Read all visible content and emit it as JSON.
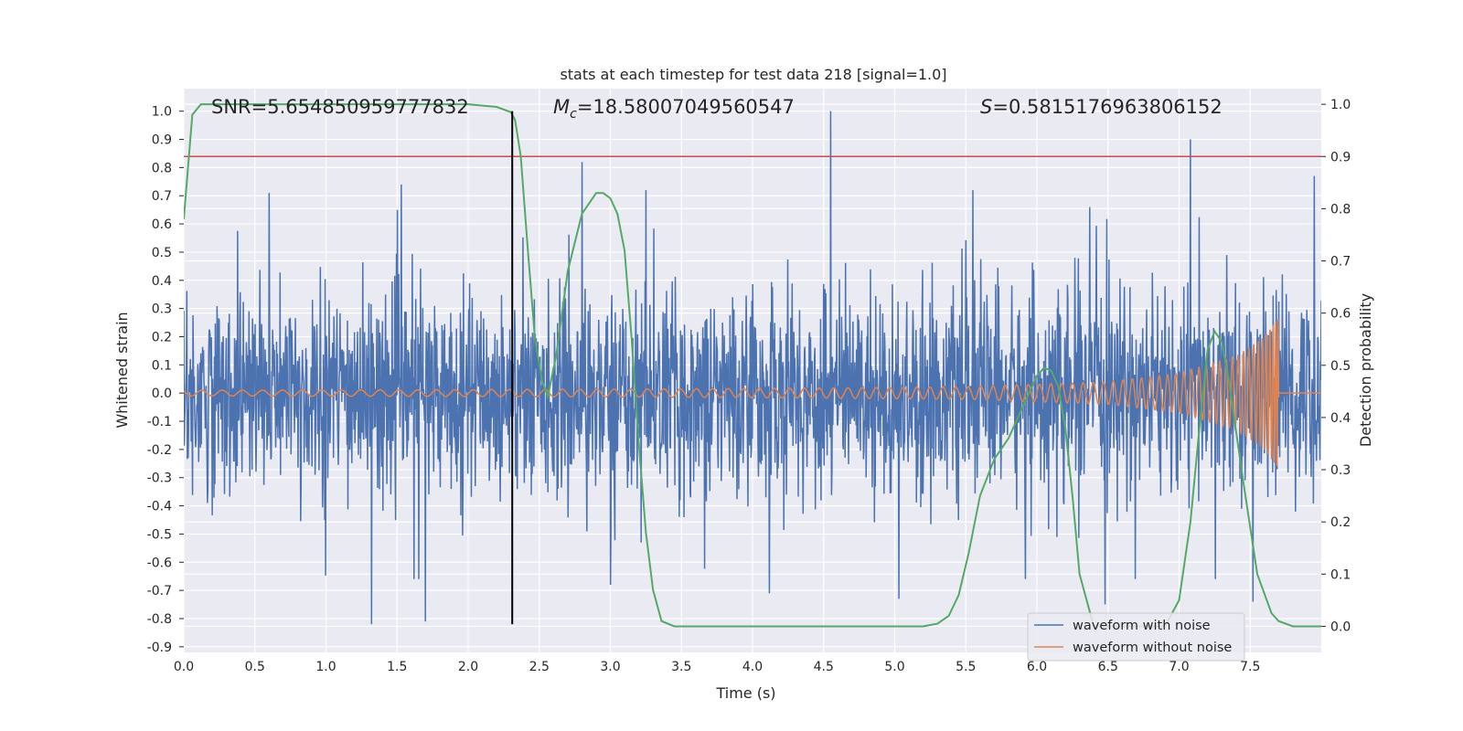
{
  "chart_data": {
    "type": "line",
    "title": "stats at each timestep for test data 218 [signal=1.0]",
    "xlabel": "Time (s)",
    "ylabel": "Whitened strain",
    "y2label": "Detection probability",
    "xlim": [
      0.0,
      8.0
    ],
    "ylim": [
      -0.92,
      1.08
    ],
    "y2lim": [
      -0.05,
      1.03
    ],
    "xticks": [
      "0.0",
      "0.5",
      "1.0",
      "1.5",
      "2.0",
      "2.5",
      "3.0",
      "3.5",
      "4.0",
      "4.5",
      "5.0",
      "5.5",
      "6.0",
      "6.5",
      "7.0",
      "7.5"
    ],
    "xtick_values": [
      0.0,
      0.5,
      1.0,
      1.5,
      2.0,
      2.5,
      3.0,
      3.5,
      4.0,
      4.5,
      5.0,
      5.5,
      6.0,
      6.5,
      7.0,
      7.5
    ],
    "yticks": [
      "-0.9",
      "-0.8",
      "-0.7",
      "-0.6",
      "-0.5",
      "-0.4",
      "-0.3",
      "-0.2",
      "-0.1",
      "0.0",
      "0.1",
      "0.2",
      "0.3",
      "0.4",
      "0.5",
      "0.6",
      "0.7",
      "0.8",
      "0.9",
      "1.0"
    ],
    "ytick_values": [
      -0.9,
      -0.8,
      -0.7,
      -0.6,
      -0.5,
      -0.4,
      -0.3,
      -0.2,
      -0.1,
      0.0,
      0.1,
      0.2,
      0.3,
      0.4,
      0.5,
      0.6,
      0.7,
      0.8,
      0.9,
      1.0
    ],
    "y2ticks": [
      "0.0",
      "0.1",
      "0.2",
      "0.3",
      "0.4",
      "0.5",
      "0.6",
      "0.7",
      "0.8",
      "0.9",
      "1.0"
    ],
    "y2tick_values": [
      0.0,
      0.1,
      0.2,
      0.3,
      0.4,
      0.5,
      0.6,
      0.7,
      0.8,
      0.9,
      1.0
    ],
    "annotations": {
      "snr": "SNR=5.654850959777832",
      "mc_symbol": "M",
      "mc_sub": "c",
      "mc_value": "=18.58007049560547",
      "s_symbol": "S",
      "s_value": "=0.5815176963806152"
    },
    "threshold": {
      "value": 0.9,
      "axis": "y2",
      "color": "#c44e52"
    },
    "marker": {
      "x": 2.31,
      "ymin": -0.82,
      "ymax": 1.0,
      "color": "#000000"
    },
    "legend": {
      "placement": "lower-right",
      "entries": [
        {
          "label": "waveform with noise",
          "color": "#4c72b0"
        },
        {
          "label": "waveform without noise",
          "color": "#dd8452"
        }
      ]
    },
    "series": [
      {
        "name": "waveform with noise",
        "axis": "y",
        "color": "#4c72b0",
        "description": "dense noisy strain, approximately within -0.82 to 1.0",
        "peaks": [
          {
            "x": 4.55,
            "y": 1.0
          },
          {
            "x": 7.08,
            "y": 0.9
          },
          {
            "x": 2.8,
            "y": 0.82
          },
          {
            "x": 7.95,
            "y": 0.77
          },
          {
            "x": 1.53,
            "y": 0.74
          },
          {
            "x": 0.6,
            "y": 0.71
          },
          {
            "x": 3.25,
            "y": 0.72
          },
          {
            "x": 5.55,
            "y": 0.72
          },
          {
            "x": 1.32,
            "y": -0.82
          },
          {
            "x": 1.7,
            "y": -0.81
          },
          {
            "x": 4.12,
            "y": -0.71
          },
          {
            "x": 5.03,
            "y": -0.73
          },
          {
            "x": 6.48,
            "y": -0.75
          },
          {
            "x": 7.52,
            "y": -0.74
          },
          {
            "x": 3.0,
            "y": -0.68
          }
        ]
      },
      {
        "name": "waveform without noise",
        "axis": "y",
        "color": "#dd8452",
        "description": "chirp signal growing in amplitude and frequency, merger near t=7.72",
        "envelope": [
          [
            0.0,
            0.01
          ],
          [
            2.0,
            0.012
          ],
          [
            4.0,
            0.016
          ],
          [
            5.5,
            0.022
          ],
          [
            6.5,
            0.04
          ],
          [
            7.0,
            0.07
          ],
          [
            7.4,
            0.13
          ],
          [
            7.6,
            0.2
          ],
          [
            7.7,
            0.27
          ],
          [
            7.72,
            0.0
          ],
          [
            8.0,
            0.0
          ]
        ]
      },
      {
        "name": "detection probability",
        "axis": "y2",
        "color": "#55a868",
        "x": [
          0.0,
          0.06,
          0.12,
          0.2,
          0.5,
          1.0,
          1.5,
          2.0,
          2.2,
          2.3,
          2.33,
          2.37,
          2.42,
          2.47,
          2.52,
          2.56,
          2.62,
          2.7,
          2.8,
          2.9,
          2.95,
          3.0,
          3.05,
          3.1,
          3.15,
          3.2,
          3.25,
          3.3,
          3.36,
          3.45,
          3.6,
          4.0,
          4.5,
          5.0,
          5.2,
          5.3,
          5.38,
          5.45,
          5.52,
          5.6,
          5.7,
          5.8,
          5.9,
          6.0,
          6.05,
          6.1,
          6.15,
          6.2,
          6.25,
          6.3,
          6.4,
          6.5,
          6.7,
          6.9,
          7.0,
          7.08,
          7.15,
          7.2,
          7.25,
          7.3,
          7.35,
          7.45,
          7.55,
          7.65,
          7.7,
          7.8,
          8.0
        ],
        "y": [
          0.78,
          0.98,
          1.0,
          1.0,
          1.0,
          1.0,
          1.0,
          1.0,
          0.995,
          0.985,
          0.97,
          0.9,
          0.72,
          0.55,
          0.47,
          0.44,
          0.52,
          0.68,
          0.79,
          0.83,
          0.83,
          0.82,
          0.79,
          0.72,
          0.55,
          0.35,
          0.18,
          0.07,
          0.01,
          0.0,
          0.0,
          0.0,
          0.0,
          0.0,
          0.0,
          0.005,
          0.02,
          0.06,
          0.14,
          0.25,
          0.32,
          0.36,
          0.42,
          0.48,
          0.495,
          0.49,
          0.46,
          0.38,
          0.25,
          0.1,
          0.0,
          0.0,
          0.0,
          0.0,
          0.05,
          0.2,
          0.4,
          0.53,
          0.565,
          0.545,
          0.47,
          0.28,
          0.1,
          0.025,
          0.01,
          0.0,
          0.0
        ]
      }
    ]
  }
}
